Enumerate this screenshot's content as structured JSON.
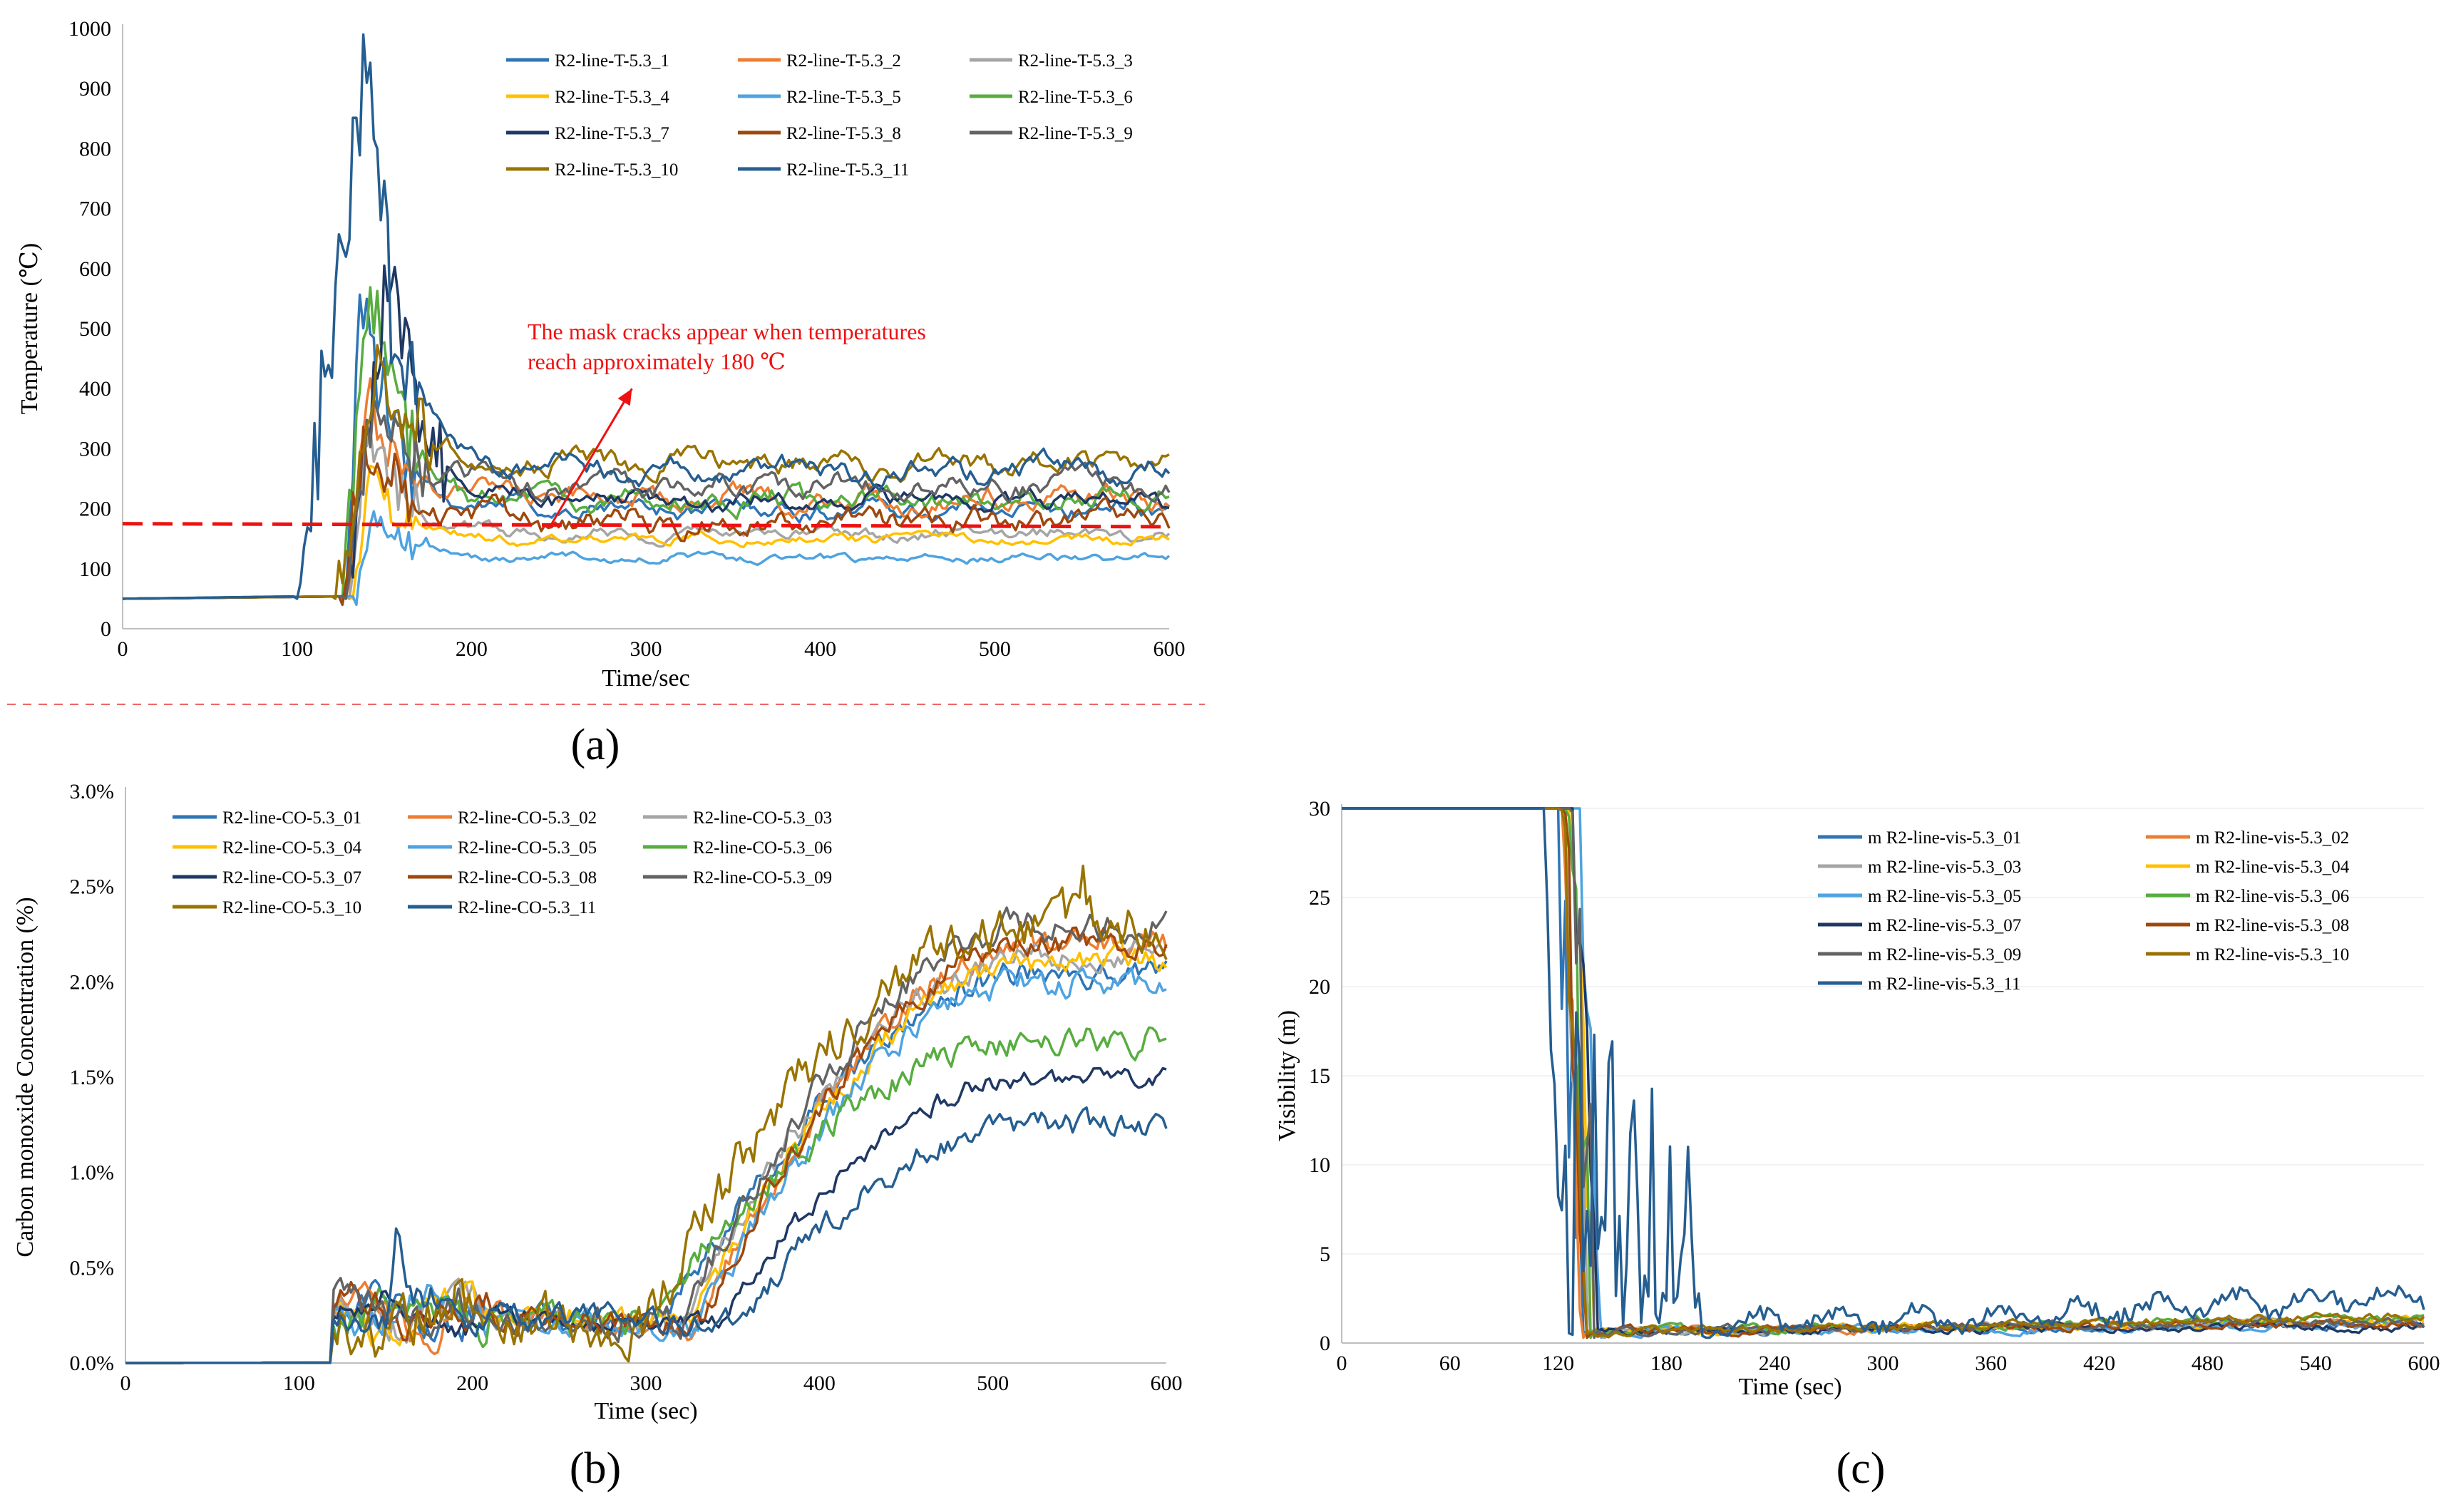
{
  "colors": {
    "series": [
      "#2e75b6",
      "#ed7d31",
      "#a5a5a5",
      "#ffc000",
      "#4ea3e0",
      "#57ad3f",
      "#1f3864",
      "#9e480e",
      "#636363",
      "#997300",
      "#255e91"
    ],
    "annotation": "#ee1111"
  },
  "chart_data": [
    {
      "panel_label": "(a)",
      "type": "line",
      "xlabel": "Time/sec",
      "ylabel": "Temperature (℃)",
      "xlim": [
        0,
        600
      ],
      "ylim": [
        0,
        1000
      ],
      "xticks": [
        "0",
        "100",
        "200",
        "300",
        "400",
        "500",
        "600"
      ],
      "yticks": [
        "0",
        "100",
        "200",
        "300",
        "400",
        "500",
        "600",
        "700",
        "800",
        "900",
        "1000"
      ],
      "legend": {
        "placement": "top-right",
        "columns": 3
      },
      "series": [
        {
          "name": "R2-line-T-5.3_1",
          "ambient": 50,
          "rise_t": 128,
          "peak": 540,
          "peak_t": 137,
          "steady": 200,
          "noise": 12
        },
        {
          "name": "R2-line-T-5.3_2",
          "ambient": 50,
          "rise_t": 130,
          "peak": 430,
          "peak_t": 140,
          "steady": 215,
          "noise": 14
        },
        {
          "name": "R2-line-T-5.3_3",
          "ambient": 50,
          "rise_t": 130,
          "peak": 330,
          "peak_t": 140,
          "steady": 160,
          "noise": 8
        },
        {
          "name": "R2-line-T-5.3_4",
          "ambient": 50,
          "rise_t": 132,
          "peak": 250,
          "peak_t": 142,
          "steady": 150,
          "noise": 6
        },
        {
          "name": "R2-line-T-5.3_5",
          "ambient": 50,
          "rise_t": 133,
          "peak": 190,
          "peak_t": 145,
          "steady": 118,
          "noise": 5
        },
        {
          "name": "R2-line-T-5.3_6",
          "ambient": 50,
          "rise_t": 126,
          "peak": 570,
          "peak_t": 142,
          "steady": 215,
          "noise": 14
        },
        {
          "name": "R2-line-T-5.3_7",
          "ambient": 50,
          "rise_t": 127,
          "peak": 620,
          "peak_t": 155,
          "steady": 215,
          "noise": 12
        },
        {
          "name": "R2-line-T-5.3_8",
          "ambient": 50,
          "rise_t": 125,
          "peak": 320,
          "peak_t": 138,
          "steady": 180,
          "noise": 16
        },
        {
          "name": "R2-line-T-5.3_9",
          "ambient": 50,
          "rise_t": 128,
          "peak": 370,
          "peak_t": 145,
          "steady": 240,
          "noise": 14
        },
        {
          "name": "R2-line-T-5.3_10",
          "ambient": 50,
          "rise_t": 122,
          "peak": 450,
          "peak_t": 148,
          "steady": 275,
          "noise": 14
        },
        {
          "name": "R2-line-T-5.3_11",
          "ambient": 50,
          "rise_t": 100,
          "peak": 940,
          "peak_t": 140,
          "steady": 265,
          "noise": 14
        }
      ],
      "reference_line": {
        "y": 175,
        "style": "dashed",
        "color": "#ee1111"
      },
      "annotation": {
        "line1": "The mask cracks appear when temperatures",
        "line2": "reach approximately 180 ℃",
        "arrow_from": [
          245,
          170
        ],
        "arrow_to": [
          292,
          400
        ]
      }
    },
    {
      "panel_label": "(b)",
      "type": "line",
      "xlabel": "Time (sec)",
      "ylabel": "Carbon monoxide Concentration (%)",
      "xlim": [
        0,
        600
      ],
      "ylim": [
        0,
        0.03
      ],
      "xticks": [
        "0",
        "100",
        "200",
        "300",
        "400",
        "500",
        "600"
      ],
      "yticks": [
        "0.0%",
        "0.5%",
        "1.0%",
        "1.5%",
        "2.0%",
        "2.5%",
        "3.0%"
      ],
      "legend": {
        "placement": "top-left",
        "columns": 3
      },
      "series": [
        {
          "name": "R2-line-CO-5.3_01",
          "onset": 310,
          "final": 0.0205,
          "noise": 0.0008
        },
        {
          "name": "R2-line-CO-5.3_02",
          "onset": 330,
          "final": 0.022,
          "noise": 0.0008
        },
        {
          "name": "R2-line-CO-5.3_03",
          "onset": 320,
          "final": 0.0215,
          "noise": 0.0008
        },
        {
          "name": "R2-line-CO-5.3_04",
          "onset": 325,
          "final": 0.021,
          "noise": 0.0008
        },
        {
          "name": "R2-line-CO-5.3_05",
          "onset": 330,
          "final": 0.02,
          "noise": 0.0008
        },
        {
          "name": "R2-line-CO-5.3_06",
          "onset": 300,
          "final": 0.017,
          "noise": 0.0009
        },
        {
          "name": "R2-line-CO-5.3_07",
          "onset": 340,
          "final": 0.015,
          "noise": 0.0006
        },
        {
          "name": "R2-line-CO-5.3_08",
          "onset": 330,
          "final": 0.022,
          "noise": 0.0008
        },
        {
          "name": "R2-line-CO-5.3_09",
          "onset": 320,
          "final": 0.023,
          "noise": 0.0009
        },
        {
          "name": "R2-line-CO-5.3_10",
          "onset": 300,
          "final": 0.023,
          "noise": 0.0015
        },
        {
          "name": "R2-line-CO-5.3_11",
          "onset": 350,
          "final": 0.0125,
          "noise": 0.0008
        }
      ]
    },
    {
      "panel_label": "(c)",
      "type": "line",
      "xlabel": "Time (sec)",
      "ylabel": "Visibility (m)",
      "xlim": [
        0,
        600
      ],
      "ylim": [
        0,
        30
      ],
      "xticks": [
        "0",
        "60",
        "120",
        "180",
        "240",
        "300",
        "360",
        "420",
        "480",
        "540",
        "600"
      ],
      "yticks": [
        "0",
        "5",
        "10",
        "15",
        "20",
        "25",
        "30"
      ],
      "legend": {
        "placement": "top-right",
        "columns": 2
      },
      "series": [
        {
          "name": "m R2-line-vis-5.3_01",
          "drop_t": 120,
          "late": 1.0
        },
        {
          "name": "m R2-line-vis-5.3_02",
          "drop_t": 122,
          "late": 1.1
        },
        {
          "name": "m R2-line-vis-5.3_03",
          "drop_t": 124,
          "late": 1.2
        },
        {
          "name": "m R2-line-vis-5.3_04",
          "drop_t": 126,
          "late": 1.2
        },
        {
          "name": "m R2-line-vis-5.3_05",
          "drop_t": 132,
          "late": 1.0
        },
        {
          "name": "m R2-line-vis-5.3_06",
          "drop_t": 125,
          "late": 1.4
        },
        {
          "name": "m R2-line-vis-5.3_07",
          "drop_t": 128,
          "late": 0.9
        },
        {
          "name": "m R2-line-vis-5.3_08",
          "drop_t": 123,
          "late": 1.1
        },
        {
          "name": "m R2-line-vis-5.3_09",
          "drop_t": 127,
          "late": 1.3
        },
        {
          "name": "m R2-line-vis-5.3_10",
          "drop_t": 121,
          "late": 1.5
        },
        {
          "name": "m R2-line-vis-5.3_11",
          "drop_t": 112,
          "late": 2.4
        }
      ]
    }
  ]
}
